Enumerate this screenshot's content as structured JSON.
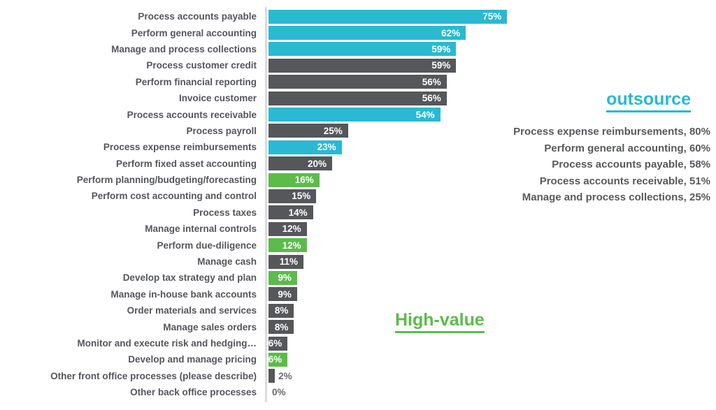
{
  "chart_data": {
    "type": "bar",
    "orientation": "horizontal",
    "title": "",
    "xlabel": "",
    "ylabel": "",
    "unit": "%",
    "xlim": [
      0,
      80
    ],
    "grid": false,
    "legend_position": "none",
    "series_colors": {
      "outsourced": "#29B9D2",
      "high-value": "#5CBB4A",
      "standard": "#56575B"
    },
    "bars": [
      {
        "label": "Process accounts payable",
        "value": 75,
        "category": "outsourced"
      },
      {
        "label": "Perform general accounting",
        "value": 62,
        "category": "outsourced"
      },
      {
        "label": "Manage and process collections",
        "value": 59,
        "category": "outsourced"
      },
      {
        "label": "Process customer credit",
        "value": 59,
        "category": "standard"
      },
      {
        "label": "Perform financial reporting",
        "value": 56,
        "category": "standard"
      },
      {
        "label": "Invoice customer",
        "value": 56,
        "category": "standard"
      },
      {
        "label": "Process accounts receivable",
        "value": 54,
        "category": "outsourced"
      },
      {
        "label": "Process payroll",
        "value": 25,
        "category": "standard"
      },
      {
        "label": "Process expense reimbursements",
        "value": 23,
        "category": "outsourced"
      },
      {
        "label": "Perform fixed asset accounting",
        "value": 20,
        "category": "standard"
      },
      {
        "label": "Perform planning/budgeting/forecasting",
        "value": 16,
        "category": "high-value"
      },
      {
        "label": "Perform cost accounting and control",
        "value": 15,
        "category": "standard"
      },
      {
        "label": "Process taxes",
        "value": 14,
        "category": "standard"
      },
      {
        "label": "Manage internal controls",
        "value": 12,
        "category": "standard"
      },
      {
        "label": "Perform due-diligence",
        "value": 12,
        "category": "high-value"
      },
      {
        "label": "Manage cash",
        "value": 11,
        "category": "standard"
      },
      {
        "label": "Develop tax strategy and plan",
        "value": 9,
        "category": "high-value"
      },
      {
        "label": "Manage in-house bank accounts",
        "value": 9,
        "category": "standard"
      },
      {
        "label": "Order materials and services",
        "value": 8,
        "category": "standard"
      },
      {
        "label": "Manage sales orders",
        "value": 8,
        "category": "standard"
      },
      {
        "label": "Monitor and execute risk and hedging…",
        "value": 6,
        "category": "standard"
      },
      {
        "label": "Develop and manage pricing",
        "value": 6,
        "category": "high-value"
      },
      {
        "label": "Other front office processes (please describe)",
        "value": 2,
        "category": "standard"
      },
      {
        "label": "Other back office processes",
        "value": 0,
        "category": "standard"
      }
    ]
  },
  "annotations": {
    "outsource": {
      "title": "outsource",
      "color": "#29B9D2",
      "items": [
        "Process expense reimbursements, 80%",
        "Perform general accounting, 60%",
        "Process accounts payable, 58%",
        "Process accounts receivable, 51%",
        "Manage and process collections, 25%"
      ]
    },
    "high_value": {
      "label": "High-value",
      "color": "#5CBB4A"
    }
  }
}
